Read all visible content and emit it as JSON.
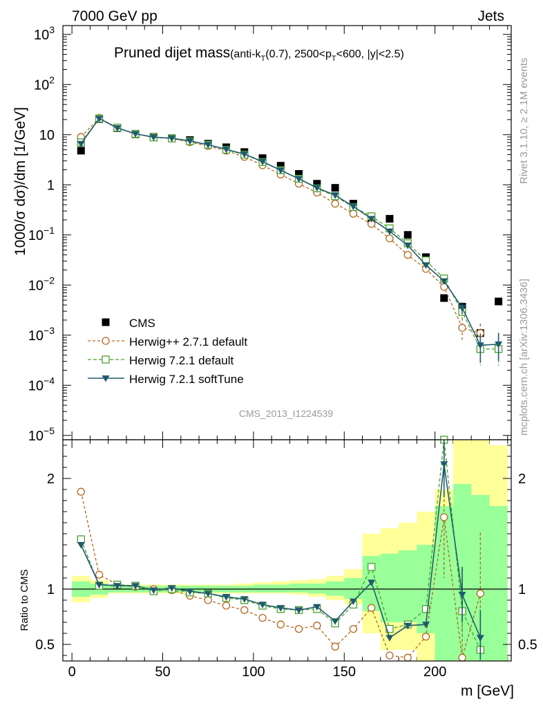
{
  "header": {
    "left": "7000 GeV pp",
    "right": "Jets"
  },
  "side_labels": {
    "rivet": "Rivet 3.1.10, ≥ 2.1M events",
    "mcplots": "mcplots.cern.ch [arXiv:1306.3436]"
  },
  "analysis_id": "CMS_2013_I1224539",
  "colors": {
    "cms": "#000000",
    "herwigpp": "#b5651d",
    "herwig721": "#4aa02c",
    "softtune": "#1f5a6e",
    "band_yellow": "#ffff99",
    "band_green": "#99ff99"
  },
  "chart_data": [
    {
      "type": "scatter",
      "name": "main",
      "title": "Pruned dijet mass",
      "title_sub": "(anti-k",
      "title_sub_T": "T",
      "title_rest": "(0.7), 2500<p",
      "title_rest_T": "T",
      "title_end": "<600, |y|<2.5)",
      "ylabel": "1000/σ dσ)/dm [1/GeV]",
      "yscale": "log",
      "ylim": [
        8.2e-06,
        1500
      ],
      "xlim": [
        -5,
        242
      ],
      "ytick_labels": [
        {
          "base": "10",
          "exp": "3",
          "value": 1000
        },
        {
          "base": "10",
          "exp": "2",
          "value": 100
        },
        {
          "base": "10",
          "exp": "",
          "value": 10
        },
        {
          "base": "1",
          "exp": "",
          "value": 1
        },
        {
          "base": "10",
          "exp": "−1",
          "value": 0.1
        },
        {
          "base": "10",
          "exp": "−2",
          "value": 0.01
        },
        {
          "base": "10",
          "exp": "−3",
          "value": 0.001
        },
        {
          "base": "10",
          "exp": "−4",
          "value": 0.0001
        },
        {
          "base": "10",
          "exp": "−5",
          "value": 1e-05
        }
      ],
      "x": [
        5,
        15,
        25,
        35,
        45,
        55,
        65,
        75,
        85,
        95,
        105,
        115,
        125,
        135,
        145,
        155,
        165,
        175,
        185,
        195,
        205,
        215,
        225,
        235
      ],
      "series": [
        {
          "name": "CMS",
          "label": "CMS",
          "style": "data",
          "values": [
            4.8,
            20.5,
            13.5,
            10.2,
            9.0,
            8.5,
            7.8,
            6.6,
            5.6,
            4.5,
            3.4,
            2.4,
            1.65,
            1.05,
            0.87,
            0.42,
            0.2,
            0.21,
            0.1,
            0.036,
            0.0055,
            0.0037,
            0.0011,
            0.0047
          ]
        },
        {
          "name": "herwigpp",
          "label": "Herwig++ 2.7.1 default",
          "style": "circle",
          "values": [
            9.0,
            21.5,
            13.7,
            10.3,
            9.0,
            8.4,
            7.1,
            5.9,
            4.8,
            3.6,
            2.45,
            1.6,
            1.05,
            0.7,
            0.42,
            0.265,
            0.165,
            0.085,
            0.04,
            0.021,
            0.0092,
            0.0014,
            0.0011,
            null
          ],
          "err_lo": {
            "21": 0.0006,
            "22": 0.0004
          },
          "err_hi": {
            "21": 0.0008,
            "22": 0.0006
          }
        },
        {
          "name": "herwig721",
          "label": "Herwig 7.2.1 default",
          "style": "square",
          "values": [
            7.0,
            21.0,
            13.8,
            10.4,
            8.8,
            8.4,
            7.4,
            6.3,
            5.0,
            4.0,
            2.85,
            1.95,
            1.32,
            0.85,
            0.59,
            0.36,
            0.235,
            0.135,
            0.068,
            0.031,
            0.0135,
            0.0029,
            0.00053,
            0.00053
          ],
          "err_lo": {
            "21": 0.0008,
            "22": 0.00028,
            "23": 0.00028
          },
          "err_hi": {
            "21": 0.0009,
            "22": 0.0004,
            "23": 0.0004
          }
        },
        {
          "name": "softtune",
          "label": "Herwig 7.2.1 softTune",
          "style": "triangle",
          "values": [
            6.6,
            21.0,
            13.6,
            10.4,
            8.9,
            8.5,
            7.5,
            6.3,
            5.1,
            4.1,
            2.9,
            1.95,
            1.32,
            0.87,
            0.62,
            0.37,
            0.21,
            0.118,
            0.062,
            0.025,
            0.012,
            0.0035,
            0.00063,
            0.00066
          ],
          "err_lo": {
            "21": 0.0009,
            "22": 0.00035,
            "23": 0.00035
          },
          "err_hi": {
            "21": 0.001,
            "22": 0.00045,
            "23": 0.00045
          }
        }
      ]
    },
    {
      "type": "scatter",
      "name": "ratio",
      "ylabel": "Ratio to CMS",
      "xlabel": "m [GeV]",
      "ylim": [
        0.35,
        2.35
      ],
      "xlim": [
        -5,
        242
      ],
      "xticks": [
        0,
        50,
        100,
        150,
        200
      ],
      "yticks": [
        0.5,
        1,
        2
      ],
      "ytick_labels": [
        "0.5",
        "1",
        "2"
      ],
      "x": [
        5,
        15,
        25,
        35,
        45,
        55,
        65,
        75,
        85,
        95,
        105,
        115,
        125,
        135,
        145,
        155,
        165,
        175,
        185,
        195,
        205,
        215,
        225,
        235
      ],
      "bands": {
        "edges": [
          0,
          10,
          20,
          30,
          40,
          50,
          60,
          70,
          80,
          90,
          100,
          110,
          120,
          130,
          140,
          150,
          160,
          170,
          180,
          190,
          200,
          210,
          220,
          230,
          240
        ],
        "yellow_lo": [
          0.88,
          0.92,
          0.96,
          0.96,
          0.96,
          0.96,
          0.96,
          0.96,
          0.96,
          0.96,
          0.96,
          0.96,
          0.95,
          0.93,
          0.9,
          0.86,
          0.6,
          0.45,
          0.45,
          0.35,
          0.35,
          0.35,
          0.35,
          0.35
        ],
        "yellow_hi": [
          1.12,
          1.08,
          1.04,
          1.04,
          1.04,
          1.04,
          1.04,
          1.04,
          1.04,
          1.05,
          1.06,
          1.07,
          1.08,
          1.09,
          1.12,
          1.18,
          1.5,
          1.55,
          1.6,
          1.7,
          1.9,
          2.35,
          2.35,
          2.3
        ],
        "green_lo": [
          0.93,
          0.95,
          0.97,
          0.97,
          0.97,
          0.97,
          0.97,
          0.97,
          0.97,
          0.97,
          0.97,
          0.97,
          0.97,
          0.96,
          0.94,
          0.91,
          0.8,
          0.7,
          0.7,
          0.6,
          0.35,
          0.35,
          0.35,
          0.35
        ],
        "green_hi": [
          1.07,
          1.05,
          1.03,
          1.03,
          1.03,
          1.03,
          1.03,
          1.03,
          1.03,
          1.03,
          1.04,
          1.04,
          1.05,
          1.05,
          1.07,
          1.1,
          1.3,
          1.32,
          1.35,
          1.4,
          1.75,
          1.95,
          1.85,
          1.75
        ]
      },
      "series": [
        {
          "name": "herwigpp",
          "style": "circle",
          "values": [
            1.88,
            1.13,
            1.04,
            1.02,
            1.0,
            0.99,
            0.94,
            0.9,
            0.85,
            0.81,
            0.74,
            0.68,
            0.64,
            0.67,
            0.48,
            0.64,
            0.83,
            0.4,
            0.38,
            0.57,
            1.65,
            0.38,
            0.96,
            null
          ],
          "err_lo": {
            "20": 0.55,
            "21": 0.3,
            "22": 0.55
          },
          "err_hi": {
            "20": 0.6,
            "21": 0.3,
            "22": 0.55
          }
        },
        {
          "name": "herwig721",
          "style": "square",
          "values": [
            1.45,
            1.03,
            1.04,
            1.03,
            0.98,
            1.0,
            0.97,
            0.96,
            0.92,
            0.9,
            0.85,
            0.82,
            0.81,
            0.82,
            0.69,
            0.86,
            1.2,
            0.64,
            0.68,
            0.82,
            2.35,
            0.8,
            0.45,
            null
          ],
          "err_lo": {
            "20": 0.3,
            "21": 0.25,
            "22": 0.1
          },
          "err_hi": {
            "20": 0.2,
            "21": 0.3,
            "22": 0.3
          }
        },
        {
          "name": "softtune",
          "style": "triangle",
          "values": [
            1.4,
            1.04,
            1.03,
            1.03,
            0.99,
            1.01,
            0.98,
            0.96,
            0.93,
            0.91,
            0.86,
            0.83,
            0.81,
            0.84,
            0.71,
            0.89,
            1.06,
            0.56,
            0.67,
            0.68,
            2.13,
            0.95,
            0.56,
            null
          ],
          "err_lo": {
            "20": 0.3,
            "21": 0.25,
            "22": 0.2
          },
          "err_hi": {
            "20": 0.3,
            "21": 0.25,
            "22": 0.25
          }
        }
      ]
    }
  ]
}
